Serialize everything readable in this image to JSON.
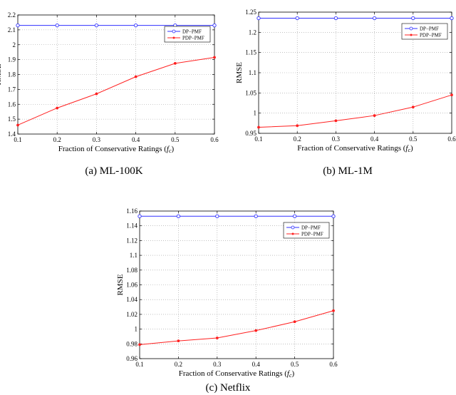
{
  "chart_data": [
    {
      "type": "line",
      "caption": "(a) ML-100K",
      "xlabel": "Fraction of Conservative Ratings (f_c)",
      "xlabel_main": "Fraction of Conservative Ratings (",
      "xlabel_f": "f",
      "xlabel_sub": "c",
      "xlabel_close": ")",
      "ylabel": "RMSE",
      "x": [
        0.1,
        0.2,
        0.3,
        0.4,
        0.5,
        0.6
      ],
      "xlim": [
        0.1,
        0.6
      ],
      "ylim": [
        1.4,
        2.2
      ],
      "xticks": [
        "0.1",
        "0.2",
        "0.3",
        "0.4",
        "0.5",
        "0.6"
      ],
      "yticks": [
        "1.4",
        "1.5",
        "1.6",
        "1.7",
        "1.8",
        "1.9",
        "2",
        "2.1",
        "2.2"
      ],
      "grid": true,
      "legend_position": "top-right",
      "series": [
        {
          "name": "DP−PMF",
          "color": "#3030ff",
          "marker": "circle",
          "values": [
            2.13,
            2.13,
            2.13,
            2.13,
            2.13,
            2.13
          ]
        },
        {
          "name": "PDP−PMF",
          "color": "#ff2020",
          "marker": "dot",
          "values": [
            1.46,
            1.575,
            1.67,
            1.785,
            1.875,
            1.915
          ]
        }
      ]
    },
    {
      "type": "line",
      "caption": "(b) ML-1M",
      "xlabel": "Fraction of Conservative Ratings (f_c)",
      "xlabel_main": "Fraction of Conservative Ratings (",
      "xlabel_f": "f",
      "xlabel_sub": "c",
      "xlabel_close": ")",
      "ylabel": "RMSE",
      "x": [
        0.1,
        0.2,
        0.3,
        0.4,
        0.5,
        0.6
      ],
      "xlim": [
        0.1,
        0.6
      ],
      "ylim": [
        0.95,
        1.25
      ],
      "xticks": [
        "0.1",
        "0.2",
        "0.3",
        "0.4",
        "0.5",
        "0.6"
      ],
      "yticks": [
        "0.95",
        "1",
        "1.05",
        "1.1",
        "1.15",
        "1.2",
        "1.25"
      ],
      "grid": true,
      "legend_position": "top-right",
      "series": [
        {
          "name": "DP−PMF",
          "color": "#3030ff",
          "marker": "circle",
          "values": [
            1.235,
            1.235,
            1.235,
            1.235,
            1.235,
            1.235
          ]
        },
        {
          "name": "PDP−PMF",
          "color": "#ff2020",
          "marker": "dot",
          "values": [
            0.965,
            0.969,
            0.981,
            0.994,
            1.015,
            1.045
          ]
        }
      ]
    },
    {
      "type": "line",
      "caption": "(c) Netflix",
      "xlabel": "Fraction of Conservative Ratings (f_c)",
      "xlabel_main": "Fraction of Conservative Ratings (",
      "xlabel_f": "f",
      "xlabel_sub": "c",
      "xlabel_close": ")",
      "ylabel": "RMSE",
      "x": [
        0.1,
        0.2,
        0.3,
        0.4,
        0.5,
        0.6
      ],
      "xlim": [
        0.1,
        0.6
      ],
      "ylim": [
        0.96,
        1.16
      ],
      "xticks": [
        "0.1",
        "0.2",
        "0.3",
        "0.4",
        "0.5",
        "0.6"
      ],
      "yticks": [
        "0.96",
        "0.98",
        "1",
        "1.02",
        "1.04",
        "1.06",
        "1.08",
        "1.1",
        "1.12",
        "1.14",
        "1.16"
      ],
      "grid": true,
      "legend_position": "top-right",
      "series": [
        {
          "name": "DP−PMF",
          "color": "#3030ff",
          "marker": "circle",
          "values": [
            1.153,
            1.153,
            1.153,
            1.153,
            1.153,
            1.153
          ]
        },
        {
          "name": "PDP−PMF",
          "color": "#ff2020",
          "marker": "dot",
          "values": [
            0.979,
            0.984,
            0.988,
            0.998,
            1.01,
            1.025
          ]
        }
      ]
    }
  ]
}
